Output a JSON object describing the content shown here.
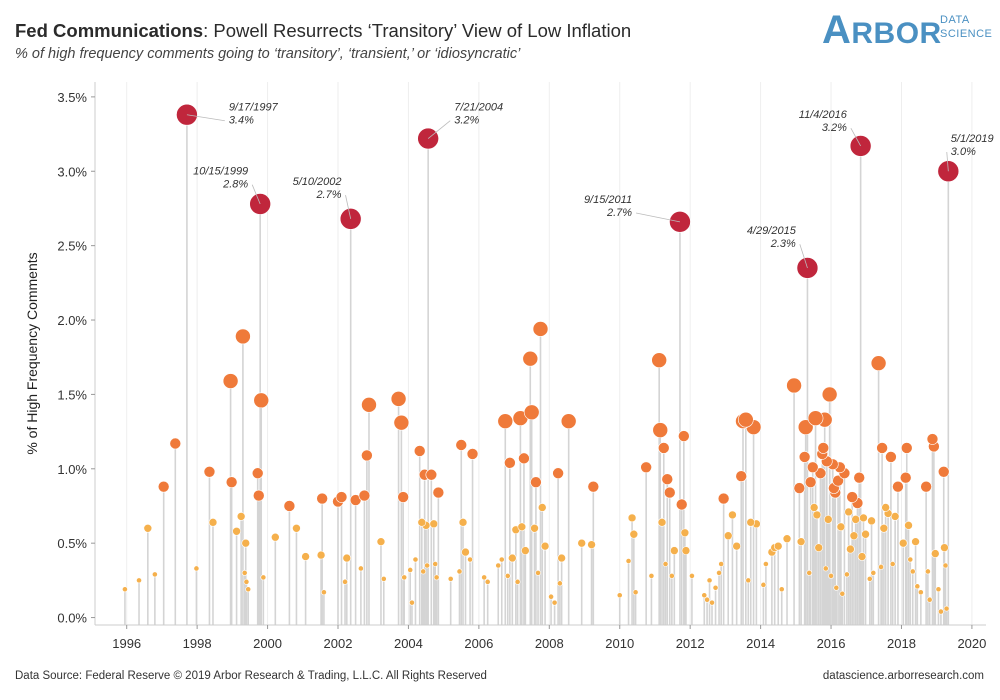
{
  "header": {
    "title_bold": "Fed Communications",
    "title_rest": ": Powell Resurrects ‘Transitory’ View of Low Inflation",
    "subtitle": "% of high frequency comments going to ‘transitory’, ‘transient,’ or ‘idiosyncratic’"
  },
  "logo": {
    "word_first": "A",
    "word_rest": "RBOR",
    "sub1": "DATA",
    "sub2": "SCIENCE"
  },
  "footer": {
    "source": "Data Source: Federal Reserve © 2019 Arbor Research & Trading, L.L.C. All Rights Reserved",
    "url": "datascience.arborresearch.com"
  },
  "colors": {
    "dark_red": "#c0263c",
    "orange": "#ef7a3a",
    "light_orange": "#f5b04c",
    "stem": "#d4d4d4",
    "text": "#333333"
  },
  "chart_data": {
    "type": "scatter",
    "style": "lollipop",
    "ylabel": "% of High Frequency Comments",
    "xlabel": "",
    "xlim": [
      1995.1,
      2020.4
    ],
    "ylim": [
      -0.05,
      3.6
    ],
    "x_ticks": [
      1996,
      1998,
      2000,
      2002,
      2004,
      2006,
      2008,
      2010,
      2012,
      2014,
      2016,
      2018,
      2020
    ],
    "y_ticks": [
      0.0,
      0.5,
      1.0,
      1.5,
      2.0,
      2.5,
      3.0,
      3.5
    ],
    "y_tick_labels": [
      "0.0%",
      "0.5%",
      "1.0%",
      "1.5%",
      "2.0%",
      "2.5%",
      "3.0%",
      "3.5%"
    ],
    "grid": "vertical",
    "annotations": [
      {
        "x": 1997.71,
        "y": 3.38,
        "date": "9/17/1997",
        "value": "3.4%",
        "lx": 1998.9,
        "ly": 3.38
      },
      {
        "x": 1999.79,
        "y": 2.78,
        "date": "10/15/1999",
        "value": "2.8%",
        "lx": 1999.45,
        "ly": 2.95
      },
      {
        "x": 2002.36,
        "y": 2.68,
        "date": "5/10/2002",
        "value": "2.7%",
        "lx": 2002.1,
        "ly": 2.88
      },
      {
        "x": 2004.56,
        "y": 3.22,
        "date": "7/21/2004",
        "value": "3.2%",
        "lx": 2005.3,
        "ly": 3.38
      },
      {
        "x": 2011.71,
        "y": 2.66,
        "date": "9/15/2011",
        "value": "2.7%",
        "lx": 2010.35,
        "ly": 2.76
      },
      {
        "x": 2015.33,
        "y": 2.35,
        "date": "4/29/2015",
        "value": "2.3%",
        "lx": 2015.0,
        "ly": 2.55
      },
      {
        "x": 2016.84,
        "y": 3.17,
        "date": "11/4/2016",
        "value": "3.2%",
        "lx": 2016.45,
        "ly": 3.33
      },
      {
        "x": 2019.33,
        "y": 3.0,
        "date": "5/1/2019",
        "value": "3.0%",
        "lx": 2019.4,
        "ly": 3.17
      }
    ],
    "points": [
      {
        "x": 1995.95,
        "y": 0.19
      },
      {
        "x": 1996.35,
        "y": 0.25
      },
      {
        "x": 1996.6,
        "y": 0.6
      },
      {
        "x": 1996.8,
        "y": 0.29
      },
      {
        "x": 1997.05,
        "y": 0.88
      },
      {
        "x": 1997.38,
        "y": 1.17
      },
      {
        "x": 1997.71,
        "y": 3.38
      },
      {
        "x": 1997.98,
        "y": 0.33
      },
      {
        "x": 1998.35,
        "y": 0.98
      },
      {
        "x": 1998.45,
        "y": 0.64
      },
      {
        "x": 1998.95,
        "y": 1.59
      },
      {
        "x": 1998.98,
        "y": 0.91
      },
      {
        "x": 1999.12,
        "y": 0.58
      },
      {
        "x": 1999.25,
        "y": 0.68
      },
      {
        "x": 1999.3,
        "y": 1.89
      },
      {
        "x": 1999.35,
        "y": 0.3
      },
      {
        "x": 1999.38,
        "y": 0.5
      },
      {
        "x": 1999.4,
        "y": 0.24
      },
      {
        "x": 1999.45,
        "y": 0.19
      },
      {
        "x": 1999.72,
        "y": 0.97
      },
      {
        "x": 1999.75,
        "y": 0.82
      },
      {
        "x": 1999.79,
        "y": 2.78
      },
      {
        "x": 1999.82,
        "y": 1.46
      },
      {
        "x": 1999.88,
        "y": 0.27
      },
      {
        "x": 2000.22,
        "y": 0.54
      },
      {
        "x": 2000.62,
        "y": 0.75
      },
      {
        "x": 2000.82,
        "y": 0.6
      },
      {
        "x": 2001.08,
        "y": 0.41
      },
      {
        "x": 2001.52,
        "y": 0.42
      },
      {
        "x": 2001.55,
        "y": 0.8
      },
      {
        "x": 2001.6,
        "y": 0.17
      },
      {
        "x": 2002.0,
        "y": 0.78
      },
      {
        "x": 2002.1,
        "y": 0.81
      },
      {
        "x": 2002.2,
        "y": 0.24
      },
      {
        "x": 2002.25,
        "y": 0.4
      },
      {
        "x": 2002.36,
        "y": 2.68
      },
      {
        "x": 2002.5,
        "y": 0.79
      },
      {
        "x": 2002.65,
        "y": 0.33
      },
      {
        "x": 2002.75,
        "y": 0.82
      },
      {
        "x": 2002.82,
        "y": 1.09
      },
      {
        "x": 2002.88,
        "y": 1.43
      },
      {
        "x": 2003.22,
        "y": 0.51
      },
      {
        "x": 2003.3,
        "y": 0.26
      },
      {
        "x": 2003.72,
        "y": 1.47
      },
      {
        "x": 2003.8,
        "y": 1.31
      },
      {
        "x": 2003.85,
        "y": 0.81
      },
      {
        "x": 2003.88,
        "y": 0.27
      },
      {
        "x": 2004.05,
        "y": 0.32
      },
      {
        "x": 2004.1,
        "y": 0.1
      },
      {
        "x": 2004.2,
        "y": 0.39
      },
      {
        "x": 2004.32,
        "y": 1.12
      },
      {
        "x": 2004.38,
        "y": 0.64
      },
      {
        "x": 2004.42,
        "y": 0.31
      },
      {
        "x": 2004.46,
        "y": 0.96
      },
      {
        "x": 2004.5,
        "y": 0.62
      },
      {
        "x": 2004.53,
        "y": 0.35
      },
      {
        "x": 2004.56,
        "y": 3.22
      },
      {
        "x": 2004.65,
        "y": 0.96
      },
      {
        "x": 2004.72,
        "y": 0.63
      },
      {
        "x": 2004.76,
        "y": 0.36
      },
      {
        "x": 2004.8,
        "y": 0.27
      },
      {
        "x": 2004.85,
        "y": 0.84
      },
      {
        "x": 2005.2,
        "y": 0.26
      },
      {
        "x": 2005.45,
        "y": 0.31
      },
      {
        "x": 2005.5,
        "y": 1.16
      },
      {
        "x": 2005.55,
        "y": 0.64
      },
      {
        "x": 2005.62,
        "y": 0.44
      },
      {
        "x": 2005.75,
        "y": 0.39
      },
      {
        "x": 2005.82,
        "y": 1.1
      },
      {
        "x": 2006.15,
        "y": 0.27
      },
      {
        "x": 2006.25,
        "y": 0.24
      },
      {
        "x": 2006.55,
        "y": 0.35
      },
      {
        "x": 2006.65,
        "y": 0.39
      },
      {
        "x": 2006.75,
        "y": 1.32
      },
      {
        "x": 2006.82,
        "y": 0.28
      },
      {
        "x": 2006.88,
        "y": 1.04
      },
      {
        "x": 2006.95,
        "y": 0.4
      },
      {
        "x": 2007.05,
        "y": 0.59
      },
      {
        "x": 2007.1,
        "y": 0.24
      },
      {
        "x": 2007.18,
        "y": 1.34
      },
      {
        "x": 2007.22,
        "y": 0.61
      },
      {
        "x": 2007.28,
        "y": 1.07
      },
      {
        "x": 2007.32,
        "y": 0.45
      },
      {
        "x": 2007.46,
        "y": 1.74
      },
      {
        "x": 2007.5,
        "y": 1.38
      },
      {
        "x": 2007.58,
        "y": 0.6
      },
      {
        "x": 2007.62,
        "y": 0.91
      },
      {
        "x": 2007.68,
        "y": 0.3
      },
      {
        "x": 2007.75,
        "y": 1.94
      },
      {
        "x": 2007.8,
        "y": 0.74
      },
      {
        "x": 2007.88,
        "y": 0.48
      },
      {
        "x": 2008.05,
        "y": 0.14
      },
      {
        "x": 2008.15,
        "y": 0.1
      },
      {
        "x": 2008.25,
        "y": 0.97
      },
      {
        "x": 2008.3,
        "y": 0.23
      },
      {
        "x": 2008.35,
        "y": 0.4
      },
      {
        "x": 2008.55,
        "y": 1.32
      },
      {
        "x": 2008.92,
        "y": 0.5
      },
      {
        "x": 2009.2,
        "y": 0.49
      },
      {
        "x": 2009.25,
        "y": 0.88
      },
      {
        "x": 2010.0,
        "y": 0.15
      },
      {
        "x": 2010.25,
        "y": 0.38
      },
      {
        "x": 2010.35,
        "y": 0.67
      },
      {
        "x": 2010.4,
        "y": 0.56
      },
      {
        "x": 2010.45,
        "y": 0.17
      },
      {
        "x": 2010.75,
        "y": 1.01
      },
      {
        "x": 2010.9,
        "y": 0.28
      },
      {
        "x": 2011.12,
        "y": 1.73
      },
      {
        "x": 2011.15,
        "y": 1.26
      },
      {
        "x": 2011.2,
        "y": 0.64
      },
      {
        "x": 2011.25,
        "y": 1.14
      },
      {
        "x": 2011.3,
        "y": 0.36
      },
      {
        "x": 2011.35,
        "y": 0.93
      },
      {
        "x": 2011.42,
        "y": 0.84
      },
      {
        "x": 2011.48,
        "y": 0.28
      },
      {
        "x": 2011.55,
        "y": 0.45
      },
      {
        "x": 2011.71,
        "y": 2.66
      },
      {
        "x": 2011.76,
        "y": 0.76
      },
      {
        "x": 2011.82,
        "y": 1.22
      },
      {
        "x": 2011.85,
        "y": 0.57
      },
      {
        "x": 2011.88,
        "y": 0.45
      },
      {
        "x": 2012.05,
        "y": 0.28
      },
      {
        "x": 2012.4,
        "y": 0.15
      },
      {
        "x": 2012.48,
        "y": 0.12
      },
      {
        "x": 2012.55,
        "y": 0.25
      },
      {
        "x": 2012.62,
        "y": 0.1
      },
      {
        "x": 2012.72,
        "y": 0.2
      },
      {
        "x": 2012.82,
        "y": 0.3
      },
      {
        "x": 2012.88,
        "y": 0.36
      },
      {
        "x": 2012.95,
        "y": 0.8
      },
      {
        "x": 2013.08,
        "y": 0.55
      },
      {
        "x": 2013.2,
        "y": 0.69
      },
      {
        "x": 2013.32,
        "y": 0.48
      },
      {
        "x": 2013.45,
        "y": 0.95
      },
      {
        "x": 2013.5,
        "y": 1.32
      },
      {
        "x": 2013.58,
        "y": 1.33
      },
      {
        "x": 2013.65,
        "y": 0.25
      },
      {
        "x": 2013.72,
        "y": 0.64
      },
      {
        "x": 2013.8,
        "y": 1.28
      },
      {
        "x": 2013.88,
        "y": 0.63
      },
      {
        "x": 2014.08,
        "y": 0.22
      },
      {
        "x": 2014.15,
        "y": 0.36
      },
      {
        "x": 2014.32,
        "y": 0.44
      },
      {
        "x": 2014.4,
        "y": 0.47
      },
      {
        "x": 2014.5,
        "y": 0.48
      },
      {
        "x": 2014.6,
        "y": 0.19
      },
      {
        "x": 2014.75,
        "y": 0.53
      },
      {
        "x": 2014.95,
        "y": 1.56
      },
      {
        "x": 2015.1,
        "y": 0.87
      },
      {
        "x": 2015.15,
        "y": 0.51
      },
      {
        "x": 2015.25,
        "y": 1.08
      },
      {
        "x": 2015.28,
        "y": 1.28
      },
      {
        "x": 2015.33,
        "y": 2.35
      },
      {
        "x": 2015.38,
        "y": 0.3
      },
      {
        "x": 2015.42,
        "y": 0.91
      },
      {
        "x": 2015.48,
        "y": 1.01
      },
      {
        "x": 2015.52,
        "y": 0.74
      },
      {
        "x": 2015.56,
        "y": 1.34
      },
      {
        "x": 2015.6,
        "y": 0.69
      },
      {
        "x": 2015.65,
        "y": 0.47
      },
      {
        "x": 2015.7,
        "y": 0.97
      },
      {
        "x": 2015.75,
        "y": 1.1
      },
      {
        "x": 2015.78,
        "y": 1.14
      },
      {
        "x": 2015.82,
        "y": 1.33
      },
      {
        "x": 2015.85,
        "y": 0.33
      },
      {
        "x": 2015.88,
        "y": 1.05
      },
      {
        "x": 2015.92,
        "y": 0.66
      },
      {
        "x": 2015.96,
        "y": 1.5
      },
      {
        "x": 2016.0,
        "y": 0.28
      },
      {
        "x": 2016.05,
        "y": 1.03
      },
      {
        "x": 2016.08,
        "y": 0.87
      },
      {
        "x": 2016.12,
        "y": 0.84
      },
      {
        "x": 2016.15,
        "y": 0.2
      },
      {
        "x": 2016.2,
        "y": 0.92
      },
      {
        "x": 2016.25,
        "y": 1.01
      },
      {
        "x": 2016.28,
        "y": 0.61
      },
      {
        "x": 2016.32,
        "y": 0.16
      },
      {
        "x": 2016.38,
        "y": 0.97
      },
      {
        "x": 2016.45,
        "y": 0.29
      },
      {
        "x": 2016.5,
        "y": 0.71
      },
      {
        "x": 2016.55,
        "y": 0.46
      },
      {
        "x": 2016.6,
        "y": 0.81
      },
      {
        "x": 2016.65,
        "y": 0.55
      },
      {
        "x": 2016.7,
        "y": 0.66
      },
      {
        "x": 2016.75,
        "y": 0.77
      },
      {
        "x": 2016.8,
        "y": 0.94
      },
      {
        "x": 2016.84,
        "y": 3.17
      },
      {
        "x": 2016.88,
        "y": 0.41
      },
      {
        "x": 2016.92,
        "y": 0.67
      },
      {
        "x": 2016.98,
        "y": 0.56
      },
      {
        "x": 2017.1,
        "y": 0.26
      },
      {
        "x": 2017.15,
        "y": 0.65
      },
      {
        "x": 2017.2,
        "y": 0.3
      },
      {
        "x": 2017.35,
        "y": 1.71
      },
      {
        "x": 2017.42,
        "y": 0.34
      },
      {
        "x": 2017.45,
        "y": 1.14
      },
      {
        "x": 2017.5,
        "y": 0.6
      },
      {
        "x": 2017.55,
        "y": 0.74
      },
      {
        "x": 2017.62,
        "y": 0.7
      },
      {
        "x": 2017.7,
        "y": 1.08
      },
      {
        "x": 2017.75,
        "y": 0.36
      },
      {
        "x": 2017.82,
        "y": 0.68
      },
      {
        "x": 2017.9,
        "y": 0.88
      },
      {
        "x": 2018.05,
        "y": 0.5
      },
      {
        "x": 2018.12,
        "y": 0.94
      },
      {
        "x": 2018.15,
        "y": 1.14
      },
      {
        "x": 2018.2,
        "y": 0.62
      },
      {
        "x": 2018.25,
        "y": 0.39
      },
      {
        "x": 2018.32,
        "y": 0.31
      },
      {
        "x": 2018.4,
        "y": 0.51
      },
      {
        "x": 2018.45,
        "y": 0.21
      },
      {
        "x": 2018.55,
        "y": 0.17
      },
      {
        "x": 2018.7,
        "y": 0.88
      },
      {
        "x": 2018.75,
        "y": 0.31
      },
      {
        "x": 2018.8,
        "y": 0.12
      },
      {
        "x": 2018.88,
        "y": 1.2
      },
      {
        "x": 2018.92,
        "y": 1.15
      },
      {
        "x": 2018.96,
        "y": 0.43
      },
      {
        "x": 2019.05,
        "y": 0.19
      },
      {
        "x": 2019.12,
        "y": 0.04
      },
      {
        "x": 2019.2,
        "y": 0.98
      },
      {
        "x": 2019.22,
        "y": 0.47
      },
      {
        "x": 2019.25,
        "y": 0.35
      },
      {
        "x": 2019.28,
        "y": 0.06
      },
      {
        "x": 2019.33,
        "y": 3.0
      }
    ]
  }
}
